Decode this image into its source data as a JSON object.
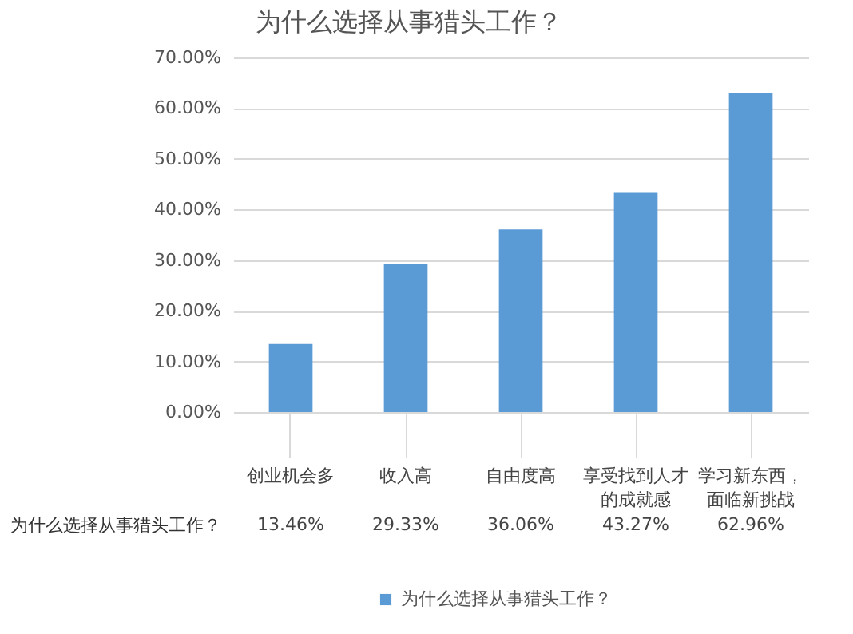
{
  "chart_data": {
    "type": "bar",
    "title": "为什么选择从事猎头工作？",
    "categories": [
      "创业机会多",
      "收入高",
      "自由度高",
      "享受找到人才的成就感",
      "学习新东西，面临新挑战"
    ],
    "series": [
      {
        "name": "为什么选择从事猎头工作？",
        "color": "#5b9bd5",
        "values": [
          13.46,
          29.33,
          36.06,
          43.27,
          62.96
        ],
        "value_labels": [
          "13.46%",
          "29.33%",
          "36.06%",
          "43.27%",
          "62.96%"
        ]
      }
    ],
    "ylim": [
      0,
      70
    ],
    "yticks": [
      {
        "value": 0,
        "label": "0.00%"
      },
      {
        "value": 10,
        "label": "10.00%"
      },
      {
        "value": 20,
        "label": "20.00%"
      },
      {
        "value": 30,
        "label": "30.00%"
      },
      {
        "value": 40,
        "label": "40.00%"
      },
      {
        "value": 50,
        "label": "50.00%"
      },
      {
        "value": 60,
        "label": "60.00%"
      },
      {
        "value": 70,
        "label": "70.00%"
      }
    ],
    "grid": "y",
    "legend": "bottom"
  }
}
